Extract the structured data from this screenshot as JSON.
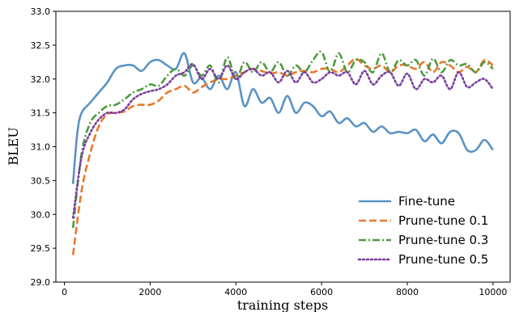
{
  "chart_data": {
    "type": "line",
    "xlabel": "training steps",
    "ylabel": "BLEU",
    "xlim": [
      -200,
      10400
    ],
    "ylim": [
      29.0,
      33.0
    ],
    "xticks": [
      0,
      2000,
      4000,
      6000,
      8000,
      10000
    ],
    "xtick_labels": [
      "0",
      "2000",
      "4000",
      "6000",
      "8000",
      "10000"
    ],
    "yticks": [
      29.0,
      29.5,
      30.0,
      30.5,
      31.0,
      31.5,
      32.0,
      32.5,
      33.0
    ],
    "ytick_labels": [
      "29.0",
      "29.5",
      "30.0",
      "30.5",
      "31.0",
      "31.5",
      "32.0",
      "32.5",
      "33.0"
    ],
    "grid": false,
    "legend_position": "lower right",
    "series": [
      {
        "name": "Fine-tune",
        "color": "#5b93c4",
        "dash": "solid",
        "points": [
          [
            200,
            30.45
          ],
          [
            300,
            31.2
          ],
          [
            400,
            31.5
          ],
          [
            600,
            31.65
          ],
          [
            800,
            31.8
          ],
          [
            1000,
            31.95
          ],
          [
            1200,
            32.15
          ],
          [
            1400,
            32.2
          ],
          [
            1600,
            32.2
          ],
          [
            1800,
            32.12
          ],
          [
            2000,
            32.25
          ],
          [
            2200,
            32.28
          ],
          [
            2400,
            32.2
          ],
          [
            2600,
            32.15
          ],
          [
            2800,
            32.38
          ],
          [
            3000,
            31.95
          ],
          [
            3200,
            32.02
          ],
          [
            3400,
            31.85
          ],
          [
            3600,
            32.05
          ],
          [
            3800,
            31.85
          ],
          [
            4000,
            32.1
          ],
          [
            4200,
            31.6
          ],
          [
            4400,
            31.85
          ],
          [
            4600,
            31.65
          ],
          [
            4800,
            31.72
          ],
          [
            5000,
            31.5
          ],
          [
            5200,
            31.75
          ],
          [
            5400,
            31.5
          ],
          [
            5600,
            31.65
          ],
          [
            5800,
            31.6
          ],
          [
            6000,
            31.45
          ],
          [
            6200,
            31.52
          ],
          [
            6400,
            31.35
          ],
          [
            6600,
            31.42
          ],
          [
            6800,
            31.3
          ],
          [
            7000,
            31.35
          ],
          [
            7200,
            31.22
          ],
          [
            7400,
            31.3
          ],
          [
            7600,
            31.2
          ],
          [
            7800,
            31.22
          ],
          [
            8000,
            31.2
          ],
          [
            8200,
            31.25
          ],
          [
            8400,
            31.08
          ],
          [
            8600,
            31.18
          ],
          [
            8800,
            31.05
          ],
          [
            9000,
            31.22
          ],
          [
            9200,
            31.2
          ],
          [
            9400,
            30.95
          ],
          [
            9600,
            30.95
          ],
          [
            9800,
            31.1
          ],
          [
            10000,
            30.95
          ]
        ]
      },
      {
        "name": "Prune-tune 0.1",
        "color": "#e8792b",
        "dash": "dashed",
        "points": [
          [
            200,
            29.4
          ],
          [
            400,
            30.35
          ],
          [
            600,
            30.9
          ],
          [
            800,
            31.3
          ],
          [
            1000,
            31.48
          ],
          [
            1200,
            31.5
          ],
          [
            1400,
            31.52
          ],
          [
            1600,
            31.6
          ],
          [
            1800,
            31.62
          ],
          [
            2000,
            31.62
          ],
          [
            2200,
            31.68
          ],
          [
            2400,
            31.8
          ],
          [
            2600,
            31.85
          ],
          [
            2800,
            31.9
          ],
          [
            3000,
            31.8
          ],
          [
            3200,
            31.88
          ],
          [
            3400,
            31.95
          ],
          [
            3600,
            32.0
          ],
          [
            3800,
            32.0
          ],
          [
            4000,
            32.05
          ],
          [
            4200,
            32.1
          ],
          [
            4400,
            32.15
          ],
          [
            4600,
            32.12
          ],
          [
            4800,
            32.08
          ],
          [
            5000,
            32.1
          ],
          [
            5200,
            32.05
          ],
          [
            5400,
            32.1
          ],
          [
            5600,
            32.12
          ],
          [
            5800,
            32.1
          ],
          [
            6000,
            32.15
          ],
          [
            6200,
            32.15
          ],
          [
            6400,
            32.1
          ],
          [
            6600,
            32.2
          ],
          [
            6800,
            32.3
          ],
          [
            7000,
            32.2
          ],
          [
            7200,
            32.15
          ],
          [
            7400,
            32.2
          ],
          [
            7600,
            32.1
          ],
          [
            7800,
            32.2
          ],
          [
            8000,
            32.2
          ],
          [
            8200,
            32.15
          ],
          [
            8400,
            32.25
          ],
          [
            8600,
            32.1
          ],
          [
            8800,
            32.25
          ],
          [
            9000,
            32.2
          ],
          [
            9200,
            32.1
          ],
          [
            9400,
            32.18
          ],
          [
            9600,
            32.1
          ],
          [
            9800,
            32.28
          ],
          [
            10000,
            32.2
          ]
        ]
      },
      {
        "name": "Prune-tune 0.3",
        "color": "#4e9a3f",
        "dash": "dashdot",
        "points": [
          [
            200,
            29.8
          ],
          [
            400,
            30.9
          ],
          [
            600,
            31.35
          ],
          [
            800,
            31.5
          ],
          [
            1000,
            31.6
          ],
          [
            1200,
            31.62
          ],
          [
            1400,
            31.7
          ],
          [
            1600,
            31.8
          ],
          [
            1800,
            31.85
          ],
          [
            2000,
            31.92
          ],
          [
            2200,
            31.9
          ],
          [
            2400,
            32.05
          ],
          [
            2600,
            32.15
          ],
          [
            2800,
            32.05
          ],
          [
            3000,
            32.2
          ],
          [
            3200,
            32.05
          ],
          [
            3400,
            32.2
          ],
          [
            3600,
            31.95
          ],
          [
            3800,
            32.32
          ],
          [
            4000,
            32.0
          ],
          [
            4200,
            32.25
          ],
          [
            4400,
            32.1
          ],
          [
            4600,
            32.25
          ],
          [
            4800,
            32.1
          ],
          [
            5000,
            32.25
          ],
          [
            5200,
            32.05
          ],
          [
            5400,
            32.2
          ],
          [
            5600,
            32.1
          ],
          [
            5800,
            32.28
          ],
          [
            6000,
            32.4
          ],
          [
            6200,
            32.1
          ],
          [
            6400,
            32.38
          ],
          [
            6600,
            32.1
          ],
          [
            6800,
            32.28
          ],
          [
            7000,
            32.25
          ],
          [
            7200,
            32.1
          ],
          [
            7400,
            32.38
          ],
          [
            7600,
            32.1
          ],
          [
            7800,
            32.28
          ],
          [
            8000,
            32.2
          ],
          [
            8200,
            32.28
          ],
          [
            8400,
            32.05
          ],
          [
            8600,
            32.3
          ],
          [
            8800,
            32.1
          ],
          [
            9000,
            32.28
          ],
          [
            9200,
            32.2
          ],
          [
            9400,
            32.22
          ],
          [
            9600,
            32.1
          ],
          [
            9800,
            32.25
          ],
          [
            10000,
            32.15
          ]
        ]
      },
      {
        "name": "Prune-tune 0.5",
        "color": "#7b3fa0",
        "dash": "dotted",
        "points": [
          [
            200,
            29.95
          ],
          [
            400,
            30.85
          ],
          [
            600,
            31.2
          ],
          [
            800,
            31.4
          ],
          [
            1000,
            31.5
          ],
          [
            1200,
            31.5
          ],
          [
            1400,
            31.55
          ],
          [
            1600,
            31.7
          ],
          [
            1800,
            31.78
          ],
          [
            2000,
            31.82
          ],
          [
            2200,
            31.85
          ],
          [
            2400,
            31.92
          ],
          [
            2600,
            32.05
          ],
          [
            2800,
            32.1
          ],
          [
            3000,
            32.22
          ],
          [
            3200,
            32.0
          ],
          [
            3400,
            32.15
          ],
          [
            3600,
            32.0
          ],
          [
            3800,
            32.2
          ],
          [
            4000,
            32.0
          ],
          [
            4200,
            32.1
          ],
          [
            4400,
            32.15
          ],
          [
            4600,
            32.05
          ],
          [
            4800,
            32.1
          ],
          [
            5000,
            31.95
          ],
          [
            5200,
            32.12
          ],
          [
            5400,
            31.95
          ],
          [
            5600,
            32.1
          ],
          [
            5800,
            31.95
          ],
          [
            6000,
            32.0
          ],
          [
            6200,
            32.1
          ],
          [
            6400,
            32.05
          ],
          [
            6600,
            32.1
          ],
          [
            6800,
            31.92
          ],
          [
            7000,
            32.12
          ],
          [
            7200,
            31.92
          ],
          [
            7400,
            32.05
          ],
          [
            7600,
            32.1
          ],
          [
            7800,
            31.9
          ],
          [
            8000,
            32.08
          ],
          [
            8200,
            31.85
          ],
          [
            8400,
            32.0
          ],
          [
            8600,
            31.95
          ],
          [
            8800,
            32.05
          ],
          [
            9000,
            31.85
          ],
          [
            9200,
            32.1
          ],
          [
            9400,
            31.88
          ],
          [
            9600,
            31.95
          ],
          [
            9800,
            32.0
          ],
          [
            10000,
            31.85
          ]
        ]
      }
    ]
  }
}
